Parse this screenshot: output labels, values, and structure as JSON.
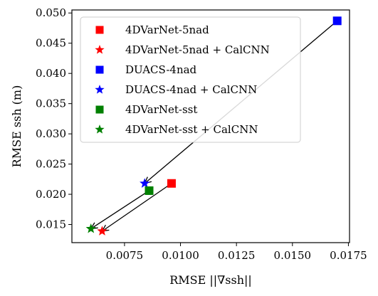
{
  "chart_data": {
    "type": "scatter",
    "title": "",
    "xlabel": "RMSE ||∇ssh||",
    "ylabel": "RMSE ssh (m)",
    "xlim": [
      0.00515,
      0.01755
    ],
    "ylim": [
      0.012,
      0.0505
    ],
    "x_ticks": [
      0.0075,
      0.01,
      0.0125,
      0.015,
      0.0175
    ],
    "x_tick_labels": [
      "0.0075",
      "0.0100",
      "0.0125",
      "0.0150",
      "0.0175"
    ],
    "y_ticks": [
      0.015,
      0.02,
      0.025,
      0.03,
      0.035,
      0.04,
      0.045,
      0.05
    ],
    "y_tick_labels": [
      "0.015",
      "0.020",
      "0.025",
      "0.030",
      "0.035",
      "0.040",
      "0.045",
      "0.050"
    ],
    "grid": false,
    "legend_position": "upper-left",
    "series": [
      {
        "name": "4DVarNet-5nad",
        "marker": "square",
        "color": "#ff0000",
        "x": 0.0096,
        "y": 0.0218
      },
      {
        "name": "4DVarNet-5nad + CalCNN",
        "marker": "star",
        "color": "#ff0000",
        "x": 0.0065,
        "y": 0.0139
      },
      {
        "name": "DUACS-4nad",
        "marker": "square",
        "color": "#0000ff",
        "x": 0.017,
        "y": 0.0487
      },
      {
        "name": "DUACS-4nad + CalCNN",
        "marker": "star",
        "color": "#0000ff",
        "x": 0.0084,
        "y": 0.0218
      },
      {
        "name": "4DVarNet-sst",
        "marker": "square",
        "color": "#008000",
        "x": 0.0086,
        "y": 0.0206
      },
      {
        "name": "4DVarNet-sst + CalCNN",
        "marker": "star",
        "color": "#008000",
        "x": 0.006,
        "y": 0.0143
      }
    ],
    "arrows": [
      {
        "from": [
          0.017,
          0.0487
        ],
        "to": [
          0.0084,
          0.0218
        ]
      },
      {
        "from": [
          0.0096,
          0.0218
        ],
        "to": [
          0.0065,
          0.0139
        ]
      },
      {
        "from": [
          0.0086,
          0.0206
        ],
        "to": [
          0.006,
          0.0143
        ]
      }
    ]
  }
}
